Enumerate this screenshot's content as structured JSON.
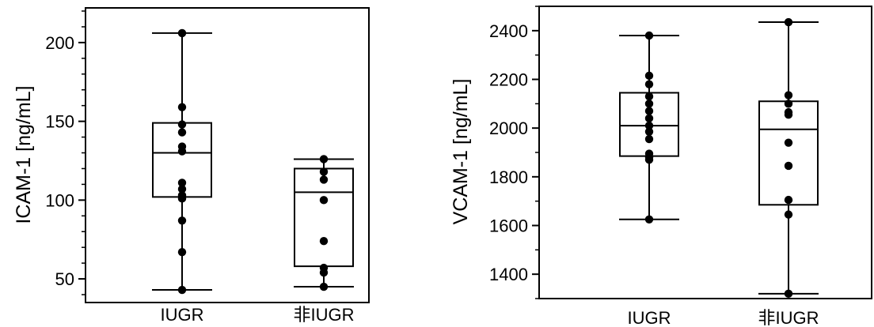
{
  "colors": {
    "ink": "#000000",
    "background": "#ffffff"
  },
  "chart_data": [
    {
      "type": "box",
      "ylabel": "ICAM-1 [ng/mL]",
      "ylim": [
        35,
        222
      ],
      "yticks": [
        50,
        100,
        150,
        200
      ],
      "categories": [
        "IUGR",
        "非IUGR"
      ],
      "boxes": [
        {
          "category": "IUGR",
          "whisker_low": 43,
          "q1": 102,
          "median": 130,
          "q3": 149,
          "whisker_high": 206,
          "points": [
            206,
            159,
            148,
            143,
            134,
            131,
            111,
            107,
            103,
            101,
            87,
            67,
            43
          ]
        },
        {
          "category": "非IUGR",
          "whisker_low": 45,
          "q1": 58,
          "median": 105,
          "q3": 120,
          "whisker_high": 126,
          "points": [
            126,
            118,
            113,
            100,
            74,
            57,
            54,
            45
          ]
        }
      ],
      "grid": false
    },
    {
      "type": "box",
      "ylabel": "VCAM-1 [ng/mL]",
      "ylim": [
        1300,
        2500
      ],
      "yticks": [
        1400,
        1600,
        1800,
        2000,
        2200,
        2400
      ],
      "categories": [
        "IUGR",
        "非IUGR"
      ],
      "boxes": [
        {
          "category": "IUGR",
          "whisker_low": 1625,
          "q1": 1885,
          "median": 2010,
          "q3": 2145,
          "whisker_high": 2380,
          "points": [
            2380,
            2215,
            2180,
            2130,
            2100,
            2070,
            2040,
            2010,
            1985,
            1955,
            1895,
            1880,
            1870,
            1625
          ]
        },
        {
          "category": "非IUGR",
          "whisker_low": 1320,
          "q1": 1685,
          "median": 1995,
          "q3": 2110,
          "whisker_high": 2435,
          "points": [
            2435,
            2135,
            2100,
            2065,
            2055,
            1940,
            1845,
            1705,
            1645,
            1320
          ]
        }
      ],
      "grid": false
    }
  ]
}
